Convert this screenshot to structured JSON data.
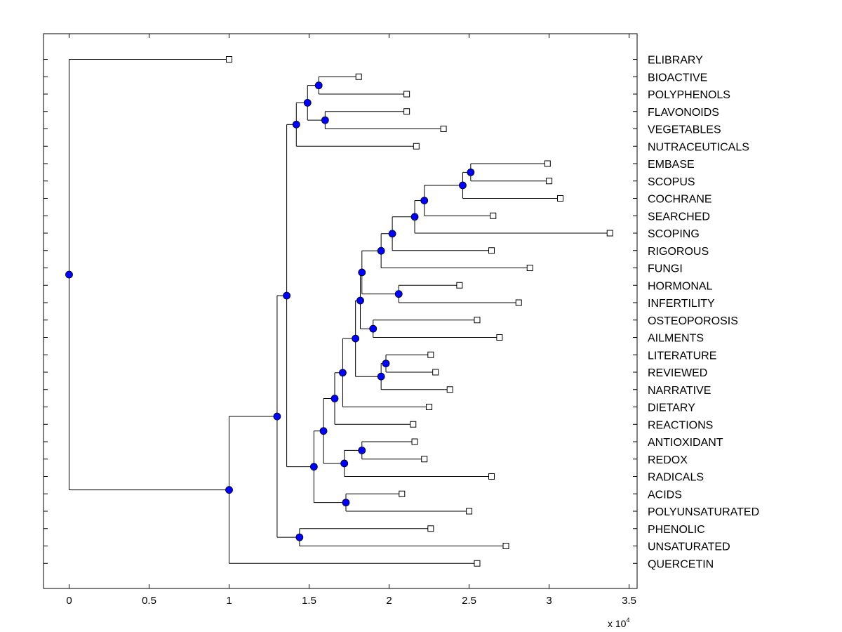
{
  "chart_data": {
    "type": "dendrogram",
    "title": "",
    "xlabel": "",
    "ylabel": "",
    "x_scale_label": "x 10",
    "x_scale_exponent": "4",
    "xlim": [
      -0.16,
      3.55
    ],
    "xticks": [
      0,
      0.5,
      1,
      1.5,
      2,
      2.5,
      3,
      3.5
    ],
    "xtick_labels": [
      "0",
      "0.5",
      "1",
      "1.5",
      "2",
      "2.5",
      "3",
      "3.5"
    ],
    "colors": {
      "node": "#0000ff",
      "leaf": "#ffffff",
      "line": "#000000"
    },
    "leaves": [
      {
        "label": "ELIBRARY",
        "x": 1.0
      },
      {
        "label": "BIOACTIVE",
        "x": 1.81
      },
      {
        "label": "POLYPHENOLS",
        "x": 2.11
      },
      {
        "label": "FLAVONOIDS",
        "x": 2.11
      },
      {
        "label": "VEGETABLES",
        "x": 2.34
      },
      {
        "label": "NUTRACEUTICALS",
        "x": 2.17
      },
      {
        "label": "EMBASE",
        "x": 2.99
      },
      {
        "label": "SCOPUS",
        "x": 3.0
      },
      {
        "label": "COCHRANE",
        "x": 3.07
      },
      {
        "label": "SEARCHED",
        "x": 2.65
      },
      {
        "label": "SCOPING",
        "x": 3.38
      },
      {
        "label": "RIGOROUS",
        "x": 2.64
      },
      {
        "label": "FUNGI",
        "x": 2.88
      },
      {
        "label": "HORMONAL",
        "x": 2.44
      },
      {
        "label": "INFERTILITY",
        "x": 2.81
      },
      {
        "label": "OSTEOPOROSIS",
        "x": 2.55
      },
      {
        "label": "AILMENTS",
        "x": 2.69
      },
      {
        "label": "LITERATURE",
        "x": 2.26
      },
      {
        "label": "REVIEWED",
        "x": 2.29
      },
      {
        "label": "NARRATIVE",
        "x": 2.38
      },
      {
        "label": "DIETARY",
        "x": 2.25
      },
      {
        "label": "REACTIONS",
        "x": 2.15
      },
      {
        "label": "ANTIOXIDANT",
        "x": 2.16
      },
      {
        "label": "REDOX",
        "x": 2.22
      },
      {
        "label": "RADICALS",
        "x": 2.64
      },
      {
        "label": "ACIDS",
        "x": 2.08
      },
      {
        "label": "POLYUNSATURATED",
        "x": 2.5
      },
      {
        "label": "PHENOLIC",
        "x": 2.26
      },
      {
        "label": "UNSATURATED",
        "x": 2.73
      },
      {
        "label": "QUERCETIN",
        "x": 2.55
      }
    ],
    "nodes": [
      {
        "id": "n1",
        "x": 1.56,
        "children": [
          "BIOACTIVE",
          "POLYPHENOLS"
        ]
      },
      {
        "id": "n2",
        "x": 1.6,
        "children": [
          "FLAVONOIDS",
          "VEGETABLES"
        ]
      },
      {
        "id": "n3",
        "x": 1.49,
        "children": [
          "n1",
          "n2"
        ]
      },
      {
        "id": "n4",
        "x": 1.42,
        "children": [
          "n3",
          "NUTRACEUTICALS"
        ]
      },
      {
        "id": "n5",
        "x": 2.51,
        "children": [
          "EMBASE",
          "SCOPUS"
        ]
      },
      {
        "id": "n6",
        "x": 2.46,
        "children": [
          "n5",
          "COCHRANE"
        ]
      },
      {
        "id": "n7",
        "x": 2.22,
        "children": [
          "n6",
          "SEARCHED"
        ]
      },
      {
        "id": "n8",
        "x": 2.16,
        "children": [
          "n7",
          "SCOPING"
        ]
      },
      {
        "id": "n9",
        "x": 2.02,
        "children": [
          "n8",
          "RIGOROUS"
        ]
      },
      {
        "id": "n10",
        "x": 1.95,
        "children": [
          "n9",
          "FUNGI"
        ]
      },
      {
        "id": "n11",
        "x": 2.06,
        "children": [
          "HORMONAL",
          "INFERTILITY"
        ]
      },
      {
        "id": "n12",
        "x": 1.83,
        "children": [
          "n10",
          "n11"
        ]
      },
      {
        "id": "n13",
        "x": 1.9,
        "children": [
          "OSTEOPOROSIS",
          "AILMENTS"
        ]
      },
      {
        "id": "n14",
        "x": 1.82,
        "children": [
          "n12",
          "n13"
        ]
      },
      {
        "id": "n15",
        "x": 1.98,
        "children": [
          "LITERATURE",
          "REVIEWED"
        ]
      },
      {
        "id": "n16",
        "x": 1.95,
        "children": [
          "n15",
          "NARRATIVE"
        ]
      },
      {
        "id": "n17",
        "x": 1.79,
        "children": [
          "n14",
          "n16"
        ]
      },
      {
        "id": "n18",
        "x": 1.71,
        "children": [
          "n17",
          "DIETARY"
        ]
      },
      {
        "id": "n19",
        "x": 1.66,
        "children": [
          "n18",
          "REACTIONS"
        ]
      },
      {
        "id": "n20",
        "x": 1.83,
        "children": [
          "ANTIOXIDANT",
          "REDOX"
        ]
      },
      {
        "id": "n21",
        "x": 1.72,
        "children": [
          "n20",
          "RADICALS"
        ]
      },
      {
        "id": "n22",
        "x": 1.59,
        "children": [
          "n19",
          "n21"
        ]
      },
      {
        "id": "n23",
        "x": 1.73,
        "children": [
          "ACIDS",
          "POLYUNSATURATED"
        ]
      },
      {
        "id": "n24",
        "x": 1.53,
        "children": [
          "n22",
          "n23"
        ]
      },
      {
        "id": "n25",
        "x": 1.36,
        "children": [
          "n4",
          "n24"
        ]
      },
      {
        "id": "n26",
        "x": 1.44,
        "children": [
          "PHENOLIC",
          "UNSATURATED"
        ]
      },
      {
        "id": "n27",
        "x": 1.3,
        "children": [
          "n25",
          "n26"
        ]
      },
      {
        "id": "n28",
        "x": 1.0,
        "children": [
          "n27",
          "QUERCETIN"
        ]
      },
      {
        "id": "n29",
        "x": 0.0,
        "children": [
          "ELIBRARY",
          "n28"
        ]
      }
    ]
  }
}
